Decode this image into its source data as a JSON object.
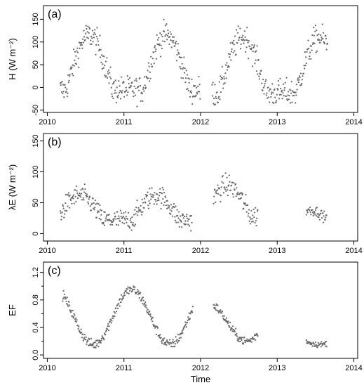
{
  "chart_data": [
    {
      "type": "scatter",
      "panel_label": "(a)",
      "ylabel": "H (W m⁻²)",
      "xlabel": "",
      "xlim": [
        2009.95,
        2014.05
      ],
      "ylim": [
        -55,
        180
      ],
      "x_ticks": [
        2010,
        2011,
        2012,
        2013,
        2014
      ],
      "x_tick_labels": [
        "2010",
        "2011",
        "2012",
        "2013",
        "2014"
      ],
      "y_ticks": [
        -50,
        0,
        50,
        100,
        150
      ],
      "y_tick_labels": [
        "-50",
        "0",
        "50",
        "100",
        "150"
      ],
      "marker_color": "#666666",
      "segments": [
        {
          "x_start": 2010.17,
          "x_end": 2012.0,
          "x_peak": 2010.55,
          "base": -5,
          "amp": 120,
          "spread": 28,
          "step": 0.006
        },
        {
          "x_start": 2012.15,
          "x_end": 2013.66,
          "x_peak": 2012.55,
          "base": -12,
          "amp": 122,
          "spread": 28,
          "step": 0.006
        }
      ]
    },
    {
      "type": "scatter",
      "panel_label": "(b)",
      "ylabel": "λE (W m⁻²)",
      "xlabel": "",
      "xlim": [
        2009.95,
        2014.05
      ],
      "ylim": [
        -12,
        162
      ],
      "x_ticks": [
        2010,
        2011,
        2012,
        2013,
        2014
      ],
      "x_tick_labels": [
        "2010",
        "2011",
        "2012",
        "2013",
        "2014"
      ],
      "y_ticks": [
        0,
        50,
        100,
        150
      ],
      "y_tick_labels": [
        "0",
        "50",
        "100",
        "150"
      ],
      "marker_color": "#666666",
      "segments": [
        {
          "x_start": 2010.17,
          "x_end": 2011.89,
          "x_peak": 2010.42,
          "base": 22,
          "amp": 40,
          "spread": 16,
          "step": 0.006
        },
        {
          "x_start": 2012.17,
          "x_end": 2012.75,
          "x_peak": 2012.35,
          "base": 28,
          "amp": 50,
          "spread": 17,
          "step": 0.006
        },
        {
          "x_start": 2013.38,
          "x_end": 2013.65,
          "x_peak": 2013.42,
          "base": 16,
          "amp": 22,
          "spread": 8,
          "step": 0.006
        }
      ]
    },
    {
      "type": "scatter",
      "panel_label": "(c)",
      "ylabel": "EF",
      "xlabel": "Time",
      "xlim": [
        2009.95,
        2014.05
      ],
      "ylim": [
        -0.05,
        1.35
      ],
      "x_ticks": [
        2010,
        2011,
        2012,
        2013,
        2014
      ],
      "x_tick_labels": [
        "2010",
        "2011",
        "2012",
        "2013",
        "2014"
      ],
      "y_ticks": [
        0.0,
        0.4,
        0.8,
        1.2
      ],
      "y_tick_labels": [
        "0.0",
        "0.4",
        "0.8",
        "1.2"
      ],
      "y_minor_ticks": [
        0.2,
        0.6,
        1.0
      ],
      "marker_color": "#666666",
      "segments": [
        {
          "x_start": 2010.2,
          "x_end": 2011.9,
          "x_trough": 2010.6,
          "hi": 0.95,
          "lo": 0.15,
          "spread": 0.07,
          "step": 0.006
        },
        {
          "x_start": 2012.17,
          "x_end": 2012.75,
          "x_trough": 2012.6,
          "hi": 0.75,
          "lo": 0.2,
          "spread": 0.06,
          "step": 0.006
        },
        {
          "x_start": 2013.38,
          "x_end": 2013.65,
          "x_trough": 2013.55,
          "hi": 0.35,
          "lo": 0.15,
          "spread": 0.04,
          "step": 0.006
        }
      ]
    }
  ]
}
